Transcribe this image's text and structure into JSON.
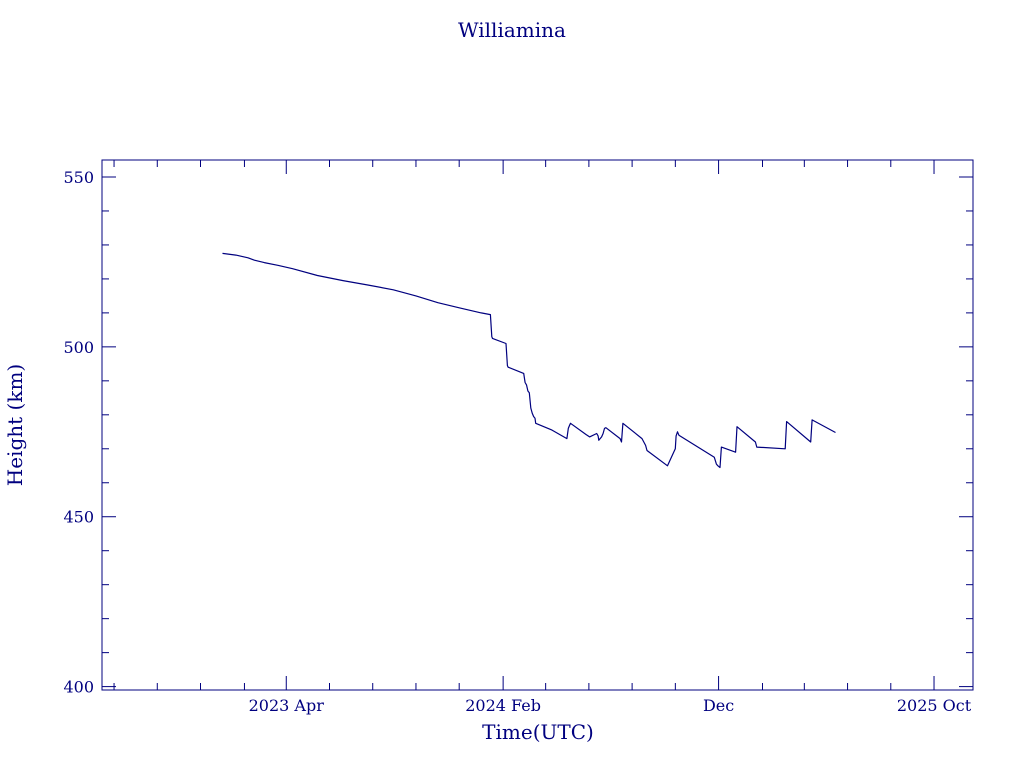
{
  "colors": {
    "ink": "#00007f",
    "background": "#ffffff"
  },
  "chart_data": {
    "type": "line",
    "title": "Williamina",
    "xlabel": "Time(UTC)",
    "ylabel": "Height (km)",
    "xlim": [
      "2022-07-15",
      "2025-11-25"
    ],
    "ylim": [
      399,
      555
    ],
    "grid": false,
    "x_ticks": [
      {
        "date": "2023-04-01",
        "label": "2023 Apr"
      },
      {
        "date": "2024-02-01",
        "label": "2024 Feb"
      },
      {
        "date": "2024-12-01",
        "label": "Dec"
      },
      {
        "date": "2025-10-01",
        "label": "2025 Oct"
      }
    ],
    "y_ticks": [
      {
        "value": 400,
        "label": "400"
      },
      {
        "value": 450,
        "label": "450"
      },
      {
        "value": 500,
        "label": "500"
      },
      {
        "value": 550,
        "label": "550"
      }
    ],
    "series": [
      {
        "x": [
          "2023-01-01",
          "2023-01-20",
          "2023-02-06",
          "2023-02-15",
          "2023-03-01",
          "2023-03-20",
          "2023-04-10",
          "2023-05-15",
          "2023-06-20",
          "2023-07-25",
          "2023-08-30",
          "2023-10-01",
          "2023-11-01",
          "2023-12-01",
          "2024-01-01",
          "2024-01-14",
          "2024-01-16",
          "2024-01-17",
          "2024-02-05",
          "2024-02-07",
          "2024-02-08",
          "2024-03-01",
          "2024-03-03",
          "2024-03-05",
          "2024-03-07",
          "2024-03-09",
          "2024-03-11",
          "2024-03-13",
          "2024-03-15",
          "2024-03-17",
          "2024-03-18",
          "2024-04-10",
          "2024-05-01",
          "2024-05-03",
          "2024-05-05",
          "2024-05-06",
          "2024-05-28",
          "2024-06-02",
          "2024-06-12",
          "2024-06-14",
          "2024-06-15",
          "2024-06-19",
          "2024-06-21",
          "2024-06-23",
          "2024-06-25",
          "2024-07-15",
          "2024-07-17",
          "2024-07-19",
          "2024-08-15",
          "2024-08-20",
          "2024-08-22",
          "2024-09-20",
          "2024-10-01",
          "2024-10-02",
          "2024-10-04",
          "2024-10-06",
          "2024-11-25",
          "2024-11-28",
          "2024-11-30",
          "2024-12-03",
          "2024-12-05",
          "2024-12-25",
          "2024-12-27",
          "2025-01-22",
          "2025-01-24",
          "2025-03-05",
          "2025-03-07",
          "2025-04-10",
          "2025-04-12",
          "2025-05-15"
        ],
        "y": [
          527.5,
          527.0,
          526.2,
          525.5,
          524.8,
          524.0,
          523.0,
          521.0,
          519.5,
          518.2,
          516.8,
          515.0,
          513.0,
          511.5,
          510.0,
          509.5,
          503.0,
          502.5,
          501.0,
          494.5,
          494.0,
          492.2,
          489.5,
          488.8,
          487.0,
          486.5,
          482.0,
          480.5,
          479.5,
          479.0,
          477.5,
          475.5,
          473.0,
          476.0,
          477.0,
          477.5,
          474.2,
          473.5,
          474.5,
          473.8,
          472.5,
          473.5,
          474.5,
          476.0,
          476.2,
          473.0,
          472.0,
          477.5,
          473.0,
          471.0,
          469.5,
          465.0,
          470.0,
          473.8,
          475.0,
          474.0,
          467.5,
          465.5,
          465.0,
          464.5,
          470.5,
          469.0,
          476.5,
          472.0,
          470.5,
          470.0,
          478.0,
          472.0,
          478.5,
          474.8
        ]
      }
    ]
  }
}
